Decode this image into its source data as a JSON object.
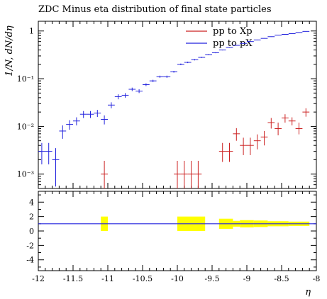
{
  "chart_data": {
    "type": "scatter",
    "title": "ZDC Minus eta distribution of final state particles",
    "xlabel": "η",
    "ylabel": "1/N, dN/dη",
    "xlim": [
      -12,
      -8
    ],
    "ylim": [
      0.0005,
      1.6
    ],
    "yscale": "log",
    "x_ticks": [
      -12,
      -11.5,
      -11,
      -10.5,
      -10,
      -9.5,
      -9,
      -8.5,
      -8
    ],
    "x_tick_labels": [
      "-12",
      "-11.5",
      "-11",
      "-10.5",
      "-10",
      "-9.5",
      "-9",
      "-8.5",
      "-8"
    ],
    "y_ticks": [
      0.001,
      0.01,
      0.1,
      1
    ],
    "y_tick_labels": [
      "10⁻³",
      "10⁻²",
      "10⁻¹",
      "1"
    ],
    "legend": {
      "position": "top-right",
      "entries": [
        {
          "label": "pp to Xp",
          "color": "#cc2222"
        },
        {
          "label": "pp to pX",
          "color": "#2222dd"
        }
      ]
    },
    "series": [
      {
        "name": "pp to Xp",
        "color": "#cc2222",
        "x": [
          -11.05,
          -10.0,
          -9.9,
          -9.8,
          -9.7,
          -9.35,
          -9.25,
          -9.15,
          -9.05,
          -8.95,
          -8.85,
          -8.75,
          -8.65,
          -8.55,
          -8.45,
          -8.35,
          -8.25,
          -8.15
        ],
        "y": [
          0.001,
          0.001,
          0.001,
          0.001,
          0.001,
          0.003,
          0.003,
          0.007,
          0.004,
          0.004,
          0.005,
          0.006,
          0.012,
          0.009,
          0.015,
          0.013,
          0.009,
          0.02
        ],
        "ylo": [
          0.0005,
          0.0005,
          0.0005,
          0.0005,
          0.0005,
          0.0018,
          0.0018,
          0.005,
          0.0025,
          0.0025,
          0.0033,
          0.004,
          0.009,
          0.0065,
          0.012,
          0.0105,
          0.0068,
          0.016
        ],
        "yhi": [
          0.0019,
          0.0019,
          0.0019,
          0.0019,
          0.0019,
          0.0045,
          0.0045,
          0.0092,
          0.0058,
          0.0058,
          0.0068,
          0.008,
          0.015,
          0.012,
          0.018,
          0.0155,
          0.012,
          0.024
        ]
      },
      {
        "name": "pp to pX",
        "color": "#2222dd",
        "x": [
          -11.95,
          -11.85,
          -11.75,
          -11.65,
          -11.55,
          -11.45,
          -11.35,
          -11.25,
          -11.15,
          -11.05,
          -10.95,
          -10.85,
          -10.75,
          -10.65,
          -10.55,
          -10.45,
          -10.35,
          -10.25,
          -10.15,
          -10.05,
          -9.95,
          -9.85,
          -9.75,
          -9.65,
          -9.55,
          -9.45,
          -9.35,
          -9.25,
          -9.15,
          -9.05,
          -8.95,
          -8.85,
          -8.75,
          -8.65,
          -8.55,
          -8.45,
          -8.35,
          -8.25,
          -8.15
        ],
        "y": [
          0.003,
          0.003,
          0.002,
          0.008,
          0.011,
          0.013,
          0.018,
          0.018,
          0.019,
          0.014,
          0.028,
          0.042,
          0.045,
          0.06,
          0.055,
          0.075,
          0.09,
          0.11,
          0.11,
          0.14,
          0.2,
          0.22,
          0.25,
          0.28,
          0.32,
          0.35,
          0.4,
          0.45,
          0.5,
          0.55,
          0.6,
          0.65,
          0.7,
          0.76,
          0.82,
          0.85,
          0.88,
          0.93,
          0.98
        ],
        "ylo": [
          0.0016,
          0.0016,
          0.00055,
          0.0055,
          0.0085,
          0.0105,
          0.015,
          0.015,
          0.0158,
          0.011,
          0.024,
          0.037,
          0.04,
          0.055,
          0.05,
          0.07,
          0.085,
          0.104,
          0.104,
          0.134,
          0.192,
          0.212,
          0.242,
          0.272,
          0.312,
          0.342,
          0.392,
          0.442,
          0.492,
          0.542,
          0.592,
          0.642,
          0.692,
          0.752,
          0.812,
          0.842,
          0.872,
          0.922,
          0.972
        ],
        "yhi": [
          0.0045,
          0.0045,
          0.0035,
          0.0105,
          0.0135,
          0.0155,
          0.021,
          0.021,
          0.0222,
          0.017,
          0.032,
          0.047,
          0.05,
          0.065,
          0.06,
          0.08,
          0.095,
          0.116,
          0.116,
          0.146,
          0.208,
          0.228,
          0.258,
          0.288,
          0.328,
          0.358,
          0.408,
          0.458,
          0.508,
          0.558,
          0.608,
          0.658,
          0.708,
          0.768,
          0.828,
          0.858,
          0.888,
          0.938,
          0.988
        ]
      }
    ],
    "ratio": {
      "ylim": [
        -5.5,
        5.5
      ],
      "y_ticks": [
        -4,
        -2,
        0,
        2,
        4
      ],
      "y_tick_labels": [
        "-4",
        "-2",
        "0",
        "2",
        "4"
      ],
      "reference": 1,
      "line_color": "#2222dd",
      "band_color": "#ffff00",
      "bands": [
        {
          "x0": -11.1,
          "x1": -11.0,
          "y0": 0,
          "y1": 2
        },
        {
          "x0": -10.0,
          "x1": -9.6,
          "y0": 0,
          "y1": 2
        },
        {
          "x0": -9.4,
          "x1": -9.2,
          "y0": 0.3,
          "y1": 1.7
        },
        {
          "x0": -9.2,
          "x1": -9.1,
          "y0": 0.6,
          "y1": 1.4
        },
        {
          "x0": -9.1,
          "x1": -8.9,
          "y0": 0.5,
          "y1": 1.5
        },
        {
          "x0": -8.9,
          "x1": -8.7,
          "y0": 0.55,
          "y1": 1.45
        },
        {
          "x0": -8.7,
          "x1": -8.4,
          "y0": 0.65,
          "y1": 1.35
        },
        {
          "x0": -8.4,
          "x1": -8.1,
          "y0": 0.7,
          "y1": 1.3
        }
      ]
    }
  }
}
